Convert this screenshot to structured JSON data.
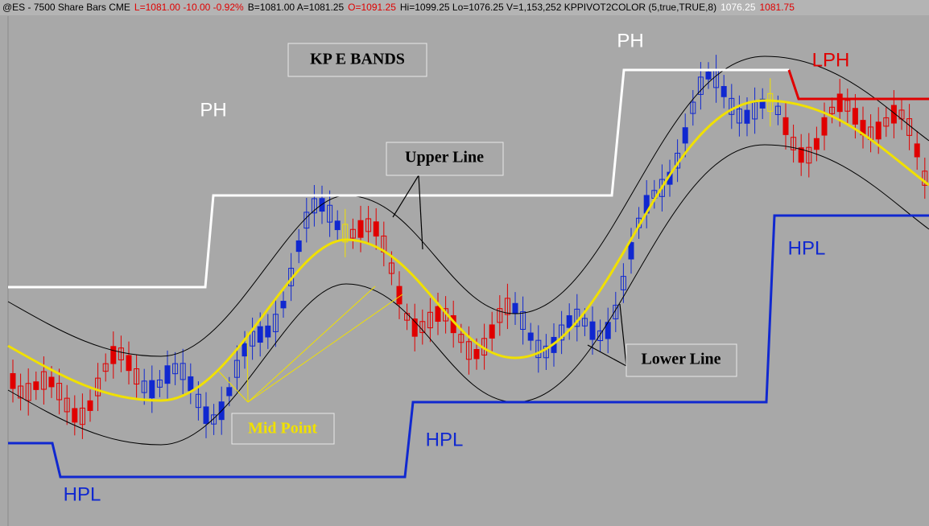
{
  "header": {
    "segments": [
      {
        "text": "@ES - 7500 Share Bars  CME",
        "color": "#000000"
      },
      {
        "text": "L=1081.00  -10.00  -0.92%",
        "color": "#e00000"
      },
      {
        "text": "B=1081.00  A=1081.25",
        "color": "#000000"
      },
      {
        "text": "O=1091.25",
        "color": "#e00000"
      },
      {
        "text": "Hi=1099.25  Lo=1076.25  V=1,153,252  KPPIVOT2COLOR (5,true,TRUE,8)",
        "color": "#000000"
      },
      {
        "text": "1076.25",
        "color": "#ffffff"
      },
      {
        "text": "1081.75",
        "color": "#e00000"
      }
    ]
  },
  "annotations": {
    "title": "KP E BANDS",
    "upper_line": "Upper Line",
    "lower_line": "Lower Line",
    "mid_point": "Mid Point",
    "ph": [
      "PH",
      "PH"
    ],
    "lph": "LPH",
    "hpl": [
      "HPL",
      "HPL",
      "HPL"
    ]
  }
}
